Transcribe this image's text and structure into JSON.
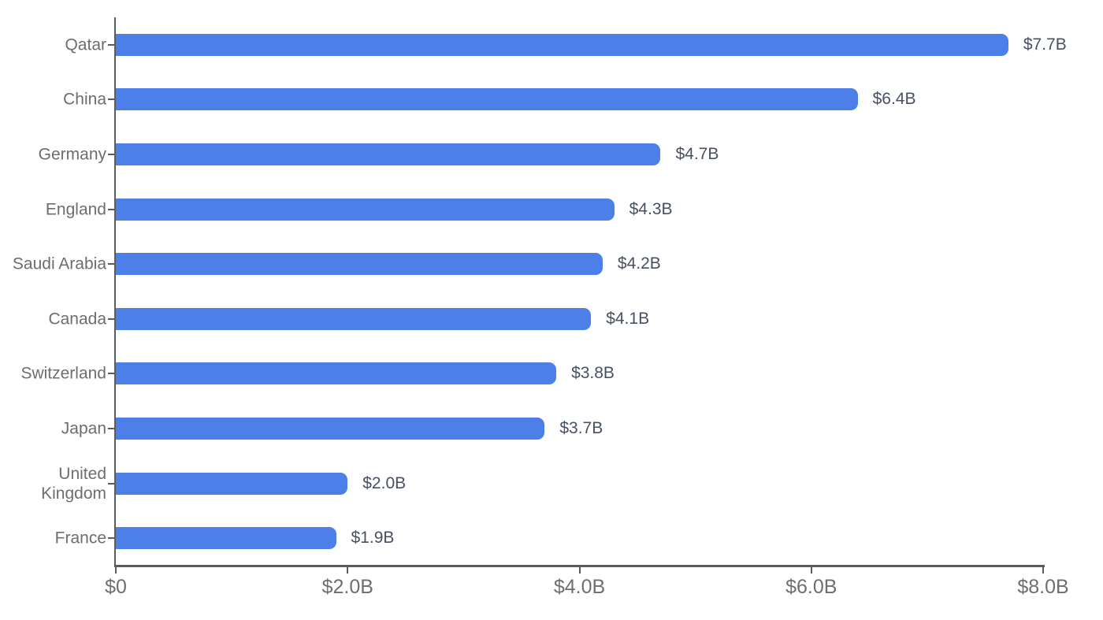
{
  "chart_data": {
    "type": "bar",
    "orientation": "horizontal",
    "title": "",
    "xlabel": "",
    "ylabel": "",
    "categories": [
      "Qatar",
      "China",
      "Germany",
      "England",
      "Saudi Arabia",
      "Canada",
      "Switzerland",
      "Japan",
      "United Kingdom",
      "France"
    ],
    "values": [
      7.7,
      6.4,
      4.7,
      4.3,
      4.2,
      4.1,
      3.8,
      3.7,
      2.0,
      1.9
    ],
    "value_labels": [
      "$7.7B",
      "$6.4B",
      "$4.7B",
      "$4.3B",
      "$4.2B",
      "$4.1B",
      "$3.8B",
      "$3.7B",
      "$2.0B",
      "$1.9B"
    ],
    "value_unit": "USD billions",
    "xlim": [
      0,
      8
    ],
    "x_tick_values": [
      0,
      2,
      4,
      6,
      8
    ],
    "x_tick_labels": [
      "$0",
      "$2.0B",
      "$4.0B",
      "$6.0B",
      "$8.0B"
    ],
    "grid": "off",
    "legend": "none",
    "bar_label_position": "right-of-bar"
  },
  "colors": {
    "bar_fill": "#4D7FE8",
    "axis_line": "#595d62",
    "category_label_text": "#6d6d6d",
    "value_label_text": "#475063",
    "axis_tick_label_text": "#6e6e6e",
    "background": "#ffffff"
  }
}
